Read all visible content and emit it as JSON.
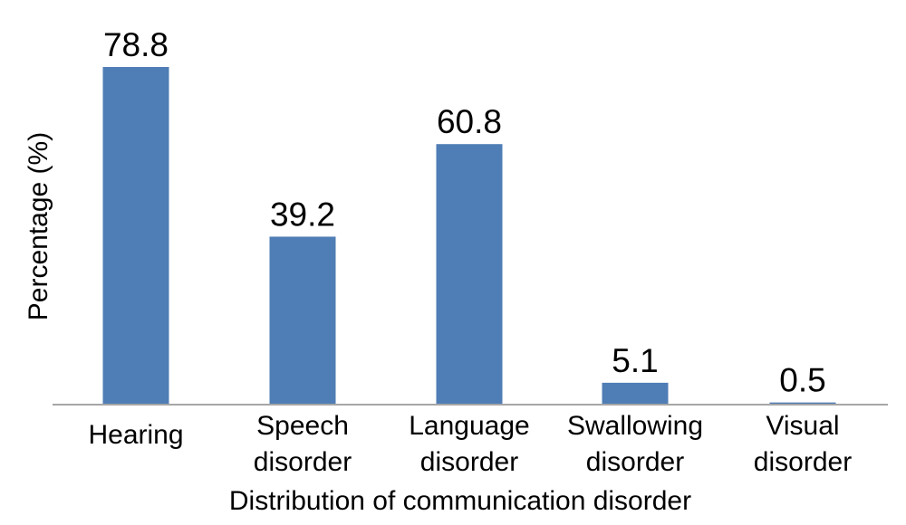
{
  "chart_data": {
    "type": "bar",
    "categories": [
      [
        "Hearing"
      ],
      [
        "Speech",
        "disorder"
      ],
      [
        "Language",
        "disorder"
      ],
      [
        "Swallowing",
        "disorder"
      ],
      [
        "Visual",
        "disorder"
      ]
    ],
    "values": [
      78.8,
      39.2,
      60.8,
      5.1,
      0.5
    ],
    "data_labels": [
      "78.8",
      "39.2",
      "60.8",
      "5.1",
      "0.5"
    ],
    "title": "",
    "xlabel": "Distribution of communication disorder",
    "ylabel": "Percentage (%)",
    "ylim": [
      0,
      80
    ],
    "grid": false,
    "legend": "none",
    "bar_color": "#4F7DB5",
    "axis_color": "#A6A6A6"
  }
}
